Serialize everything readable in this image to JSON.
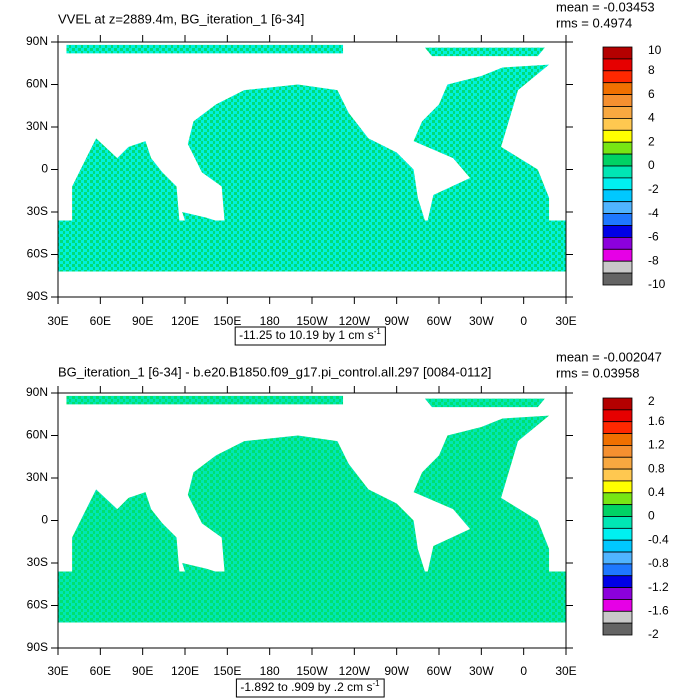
{
  "chart_data": [
    {
      "type": "map",
      "title": "VVEL at z=2889.4m, BG_iteration_1 [6-34]",
      "mean": "mean = -0.03453",
      "rms": "rms = 0.4974",
      "info": "-11.25 to 10.19 by 1 cm s",
      "info_sup": "-1",
      "xlim": [
        30,
        390
      ],
      "xticks": [
        {
          "value": 30,
          "label": "30E"
        },
        {
          "value": 60,
          "label": "60E"
        },
        {
          "value": 90,
          "label": "90E"
        },
        {
          "value": 120,
          "label": "120E"
        },
        {
          "value": 150,
          "label": "150E"
        },
        {
          "value": 180,
          "label": "180"
        },
        {
          "value": 210,
          "label": "150W"
        },
        {
          "value": 240,
          "label": "120W"
        },
        {
          "value": 270,
          "label": "90W"
        },
        {
          "value": 300,
          "label": "60W"
        },
        {
          "value": 330,
          "label": "30W"
        },
        {
          "value": 360,
          "label": "0"
        },
        {
          "value": 390,
          "label": "30E"
        }
      ],
      "ylim": [
        -90,
        90
      ],
      "yticks": [
        {
          "value": -90,
          "label": "90S"
        },
        {
          "value": -60,
          "label": "60S"
        },
        {
          "value": -30,
          "label": "30S"
        },
        0,
        {
          "value": 30,
          "label": "30N"
        },
        {
          "value": 60,
          "label": "60N"
        },
        {
          "value": 90,
          "label": "90N"
        }
      ],
      "colorbar_labels": [
        10,
        8,
        6,
        4,
        2,
        0,
        -2,
        -4,
        -6,
        -8,
        -10
      ],
      "colorbar_colors": [
        "#b40000",
        "#e60000",
        "#ff2800",
        "#f07000",
        "#f59030",
        "#f8a840",
        "#ffc850",
        "#ffff00",
        "#78e614",
        "#00d264",
        "#00e6b4",
        "#00f0f0",
        "#00c8ff",
        "#50b4ff",
        "#1e78ff",
        "#0000e6",
        "#8c00dc",
        "#e600e6",
        "#c8c8c8",
        "#646464"
      ],
      "field_colors": [
        "#00f0dc",
        "#00dc78"
      ]
    },
    {
      "type": "map",
      "title": "BG_iteration_1 [6-34] - b.e20.B1850.f09_g17.pi_control.all.297 [0084-0112]",
      "mean": "mean = -0.002047",
      "rms": "rms = 0.03958",
      "info": "-1.892 to .909 by .2 cm s",
      "info_sup": "-1",
      "xlim": [
        30,
        390
      ],
      "xticks": [
        {
          "value": 30,
          "label": "30E"
        },
        {
          "value": 60,
          "label": "60E"
        },
        {
          "value": 90,
          "label": "90E"
        },
        {
          "value": 120,
          "label": "120E"
        },
        {
          "value": 150,
          "label": "150E"
        },
        {
          "value": 180,
          "label": "180"
        },
        {
          "value": 210,
          "label": "150W"
        },
        {
          "value": 240,
          "label": "120W"
        },
        {
          "value": 270,
          "label": "90W"
        },
        {
          "value": 300,
          "label": "60W"
        },
        {
          "value": 330,
          "label": "30W"
        },
        {
          "value": 360,
          "label": "0"
        },
        {
          "value": 390,
          "label": "30E"
        }
      ],
      "ylim": [
        -90,
        90
      ],
      "yticks": [
        {
          "value": -90,
          "label": "90S"
        },
        {
          "value": -60,
          "label": "60S"
        },
        {
          "value": -30,
          "label": "30S"
        },
        0,
        {
          "value": 30,
          "label": "30N"
        },
        {
          "value": 60,
          "label": "60N"
        },
        {
          "value": 90,
          "label": "90N"
        }
      ],
      "colorbar_labels": [
        2,
        1.6,
        1.2,
        0.8,
        0.4,
        0,
        -0.4,
        -0.8,
        -1.2,
        -1.6,
        -2
      ],
      "colorbar_colors": [
        "#b40000",
        "#e60000",
        "#ff2800",
        "#f07000",
        "#f59030",
        "#f8a840",
        "#ffc850",
        "#ffff00",
        "#78e614",
        "#00d264",
        "#00e6b4",
        "#00f0f0",
        "#00c8ff",
        "#50b4ff",
        "#1e78ff",
        "#0000e6",
        "#8c00dc",
        "#e600e6",
        "#c8c8c8",
        "#646464"
      ],
      "field_colors": [
        "#00e6b4",
        "#00e070"
      ]
    }
  ]
}
